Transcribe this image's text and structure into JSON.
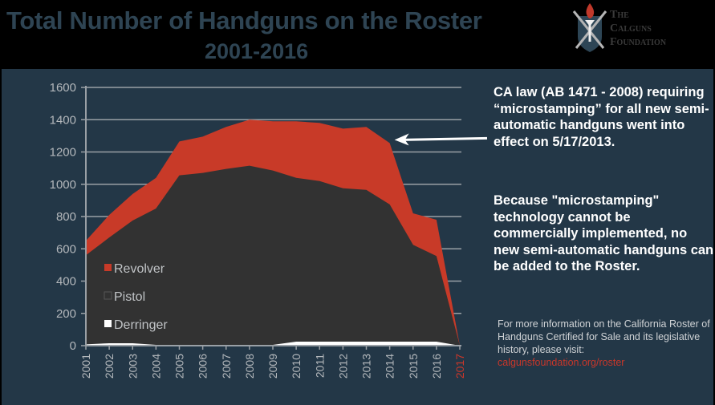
{
  "header": {
    "title": "Total Number of Handguns on the Roster",
    "subtitle": "2001-2016",
    "logo": {
      "icon": "shield-torch-swords-icon",
      "line1": "The",
      "line2": "Calguns",
      "line3": "Foundation"
    }
  },
  "colors": {
    "background_header": "#000000",
    "panel": "#233747",
    "title": "#2e4453",
    "revolver": "#c83a28",
    "pistol": "#323232",
    "derringer": "#ffffff",
    "grid": "#9aa0a6",
    "highlight_year": "#c8372a"
  },
  "annotation": {
    "law_note": "CA law (AB 1471 - 2008) requiring “microstamping” for all new semi-automatic handguns went into effect on 5/17/2013.",
    "consequence_note": "Because \"microstamping\" technology cannot be commercially implemented, no new semi-automatic handguns can be added to the Roster.",
    "more_info": "For more information on the California Roster of Handguns Certified for Sale and its legislative history, please visit:",
    "link": "calgunsfoundation.org/roster",
    "arrow_target_year": "2014"
  },
  "chart_data": {
    "type": "area",
    "stacked": true,
    "title": "Total Number of Handguns on the Roster 2001-2016",
    "xlabel": "",
    "ylabel": "",
    "ylim": [
      0,
      1600
    ],
    "yticks": [
      0,
      200,
      400,
      600,
      800,
      1000,
      1200,
      1400,
      1600
    ],
    "grid": true,
    "legend_position": "inside lower-left",
    "categories": [
      "2001",
      "2002",
      "2003",
      "2004",
      "2005",
      "2006",
      "2007",
      "2008",
      "2009",
      "2010",
      "2011",
      "2012",
      "2013",
      "2014",
      "2015",
      "2016",
      "2017"
    ],
    "series": [
      {
        "name": "Derringer",
        "color": "#ffffff",
        "values": [
          8,
          15,
          15,
          5,
          5,
          5,
          5,
          5,
          5,
          25,
          25,
          25,
          25,
          25,
          25,
          25,
          0
        ]
      },
      {
        "name": "Pistol",
        "color": "#323232",
        "values": [
          552,
          655,
          760,
          845,
          1050,
          1065,
          1090,
          1110,
          1080,
          1015,
          995,
          950,
          940,
          850,
          600,
          530,
          0
        ]
      },
      {
        "name": "Revolver",
        "color": "#c83a28",
        "values": [
          90,
          140,
          165,
          190,
          210,
          225,
          260,
          285,
          305,
          350,
          360,
          370,
          390,
          380,
          195,
          225,
          0
        ]
      }
    ],
    "totals": [
      650,
      810,
      940,
      1040,
      1265,
      1295,
      1355,
      1400,
      1390,
      1390,
      1380,
      1345,
      1355,
      1255,
      820,
      780,
      0
    ],
    "legend": [
      "Revolver",
      "Pistol",
      "Derringer"
    ],
    "highlighted_tick": "2017"
  }
}
